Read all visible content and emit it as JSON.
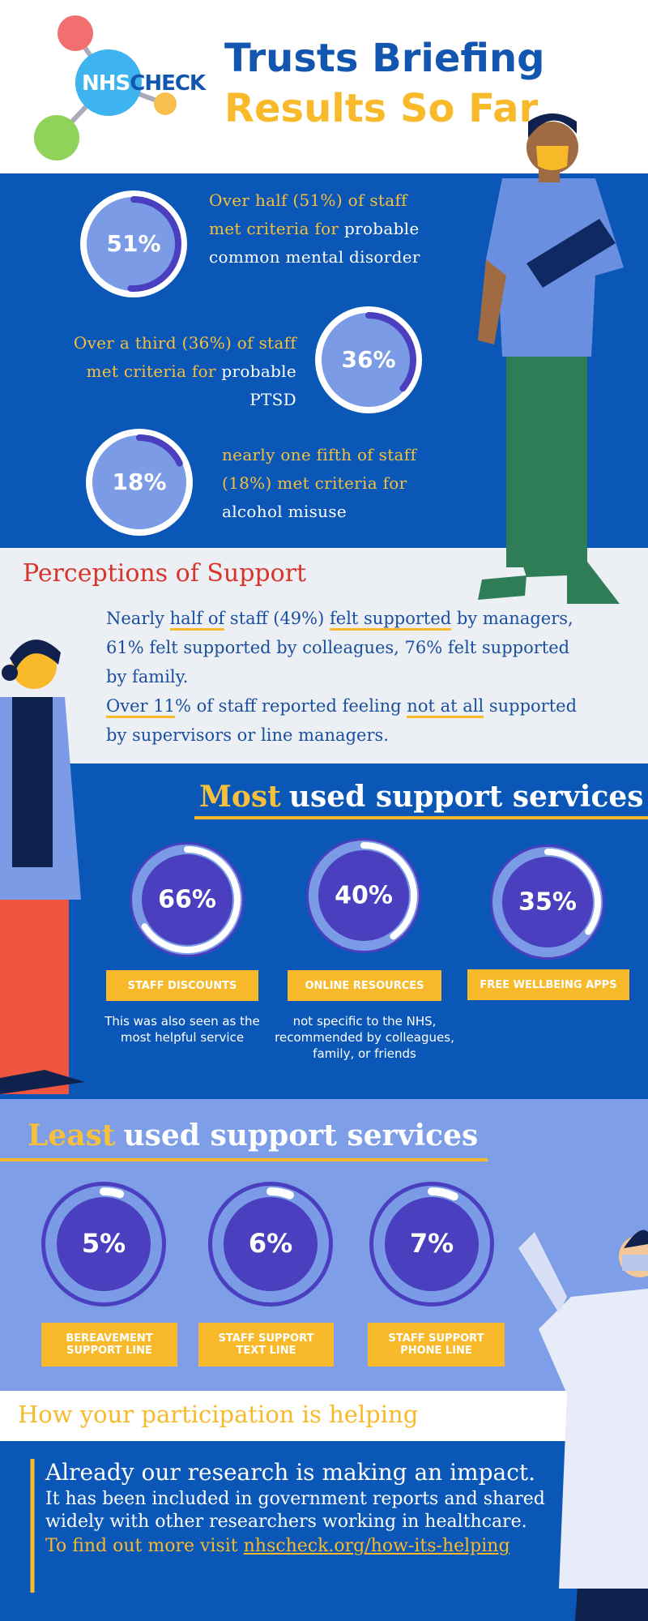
{
  "header": {
    "logo": [
      "NHS",
      "CHECK"
    ],
    "title": "Trusts Briefing",
    "subtitle": "Results So Far"
  },
  "prevalence": [
    {
      "value": 51,
      "label": "51%",
      "text": [
        "Over half (51%) of staff met criteria for",
        "probable common mental disorder"
      ]
    },
    {
      "value": 36,
      "label": "36%",
      "text": [
        "Over a third (36%) of staff met criteria for",
        "probable PTSD"
      ]
    },
    {
      "value": 18,
      "label": "18%",
      "text": [
        "nearly one fifth of staff (18%) met criteria for",
        "alcohol misuse"
      ]
    }
  ],
  "perceptions": {
    "title": "Perceptions of Support",
    "paragraphs": [
      [
        "Nearly ",
        "half of",
        " staff (49%) ",
        "felt supported",
        " by managers, 61% felt supported by colleagues, 76% felt supported by family."
      ],
      [
        "Over 11",
        "% of staff reported feeling ",
        "not at all",
        " supported by supervisors or line managers."
      ]
    ]
  },
  "most_used": {
    "title": [
      "Most",
      "used support services"
    ],
    "items": [
      {
        "value": 66,
        "label": "66%",
        "name": "STAFF DISCOUNTS",
        "note": "This was also seen as the most helpful service"
      },
      {
        "value": 40,
        "label": "40%",
        "name": "ONLINE RESOURCES",
        "note": "not specific to the NHS, recommended by colleagues, family, or friends"
      },
      {
        "value": 35,
        "label": "35%",
        "name": "FREE WELLBEING APPS"
      }
    ]
  },
  "least_used": {
    "title": [
      "Least",
      "used support services"
    ],
    "items": [
      {
        "value": 5,
        "label": "5%",
        "name": "BEREAVEMENT SUPPORT LINE"
      },
      {
        "value": 6,
        "label": "6%",
        "name": "STAFF SUPPORT TEXT LINE"
      },
      {
        "value": 7,
        "label": "7%",
        "name": "STAFF SUPPORT PHONE LINE"
      }
    ]
  },
  "impact": {
    "title": "How your participation is helping",
    "heading": "Already our research is making an impact.",
    "text": "It has been included in government reports and shared widely with other researchers working in healthcare.",
    "cta": "To find out more visit",
    "link": "nhscheck.org/how-its-helping"
  }
}
